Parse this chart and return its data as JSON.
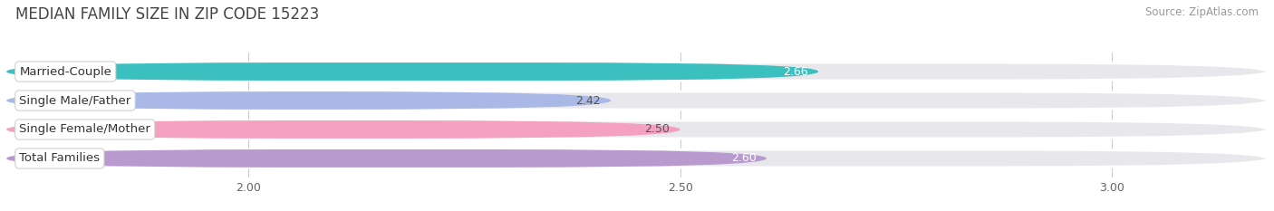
{
  "title": "MEDIAN FAMILY SIZE IN ZIP CODE 15223",
  "source": "Source: ZipAtlas.com",
  "categories": [
    "Married-Couple",
    "Single Male/Father",
    "Single Female/Mother",
    "Total Families"
  ],
  "values": [
    2.66,
    2.42,
    2.5,
    2.6
  ],
  "bar_colors": [
    "#3bbfbf",
    "#aab8e8",
    "#f4a0c0",
    "#b89ace"
  ],
  "value_text_colors": [
    "white",
    "#555555",
    "#555555",
    "white"
  ],
  "xlim_left": 1.72,
  "xlim_right": 3.18,
  "xticks": [
    2.0,
    2.5,
    3.0
  ],
  "xtick_labels": [
    "2.00",
    "2.50",
    "3.00"
  ],
  "bar_height": 0.62,
  "bar_gap": 0.38,
  "title_fontsize": 12,
  "source_fontsize": 8.5,
  "label_fontsize": 9.5,
  "value_fontsize": 9.0,
  "tick_fontsize": 9.0,
  "background_color": "#ffffff",
  "bar_bg_color": "#e8e8ec"
}
